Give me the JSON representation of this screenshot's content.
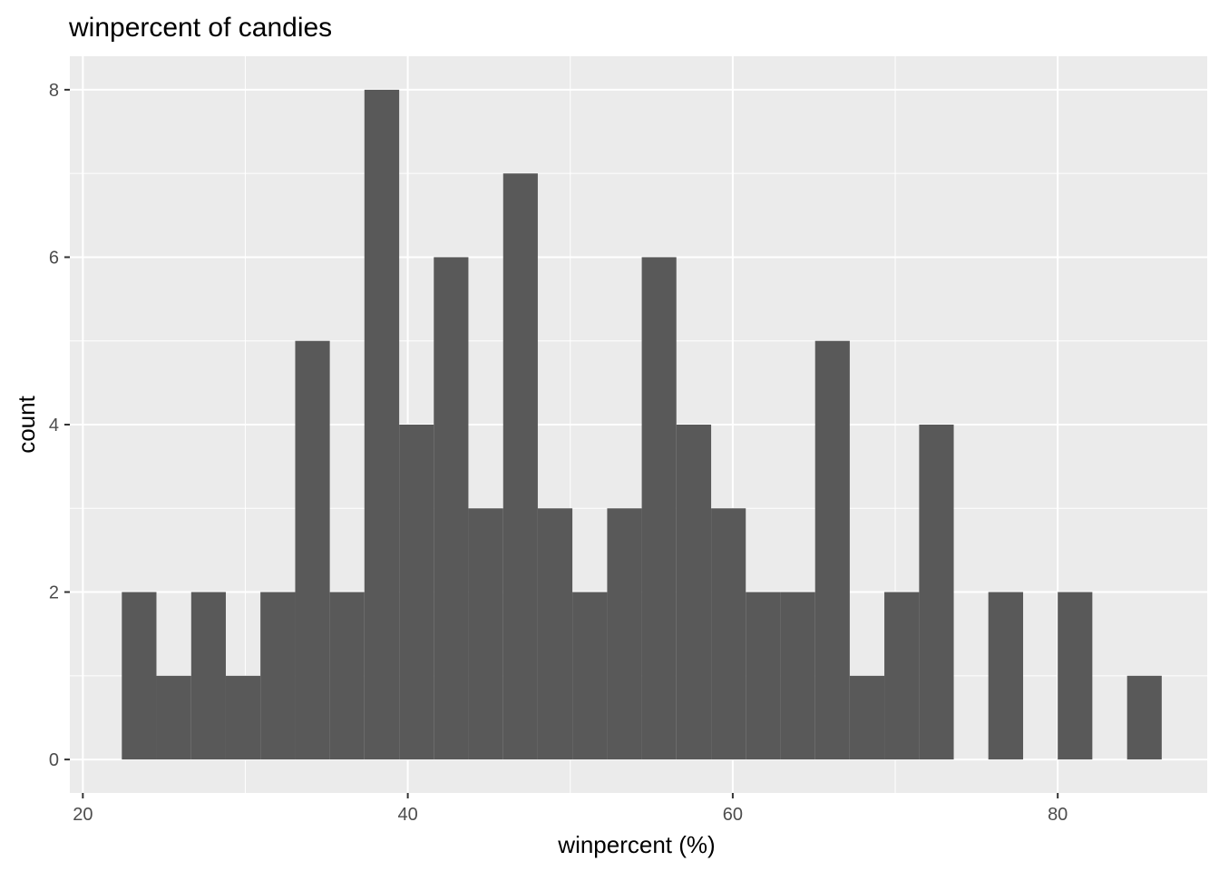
{
  "chart_data": {
    "type": "bar",
    "title": "winpercent of candies",
    "xlabel": "winpercent (%)",
    "ylabel": "count",
    "xlim": [
      19.2,
      89.2
    ],
    "ylim": [
      -0.4,
      8.4
    ],
    "x_ticks": [
      20,
      40,
      60,
      80
    ],
    "y_ticks": [
      0,
      2,
      4,
      6,
      8
    ],
    "bins": [
      {
        "x0": 22.4,
        "x1": 24.53,
        "count": 2
      },
      {
        "x0": 24.53,
        "x1": 26.67,
        "count": 1
      },
      {
        "x0": 26.67,
        "x1": 28.8,
        "count": 2
      },
      {
        "x0": 28.8,
        "x1": 30.93,
        "count": 1
      },
      {
        "x0": 30.93,
        "x1": 33.07,
        "count": 2
      },
      {
        "x0": 33.07,
        "x1": 35.2,
        "count": 5
      },
      {
        "x0": 35.2,
        "x1": 37.33,
        "count": 2
      },
      {
        "x0": 37.33,
        "x1": 39.47,
        "count": 8
      },
      {
        "x0": 39.47,
        "x1": 41.6,
        "count": 4
      },
      {
        "x0": 41.6,
        "x1": 43.73,
        "count": 6
      },
      {
        "x0": 43.73,
        "x1": 45.87,
        "count": 3
      },
      {
        "x0": 45.87,
        "x1": 48.0,
        "count": 7
      },
      {
        "x0": 48.0,
        "x1": 50.13,
        "count": 3
      },
      {
        "x0": 50.13,
        "x1": 52.27,
        "count": 2
      },
      {
        "x0": 52.27,
        "x1": 54.4,
        "count": 3
      },
      {
        "x0": 54.4,
        "x1": 56.53,
        "count": 6
      },
      {
        "x0": 56.53,
        "x1": 58.67,
        "count": 4
      },
      {
        "x0": 58.67,
        "x1": 60.8,
        "count": 3
      },
      {
        "x0": 60.8,
        "x1": 62.93,
        "count": 2
      },
      {
        "x0": 62.93,
        "x1": 65.07,
        "count": 2
      },
      {
        "x0": 65.07,
        "x1": 67.2,
        "count": 5
      },
      {
        "x0": 67.2,
        "x1": 69.33,
        "count": 1
      },
      {
        "x0": 69.33,
        "x1": 71.47,
        "count": 2
      },
      {
        "x0": 71.47,
        "x1": 73.6,
        "count": 4
      },
      {
        "x0": 73.6,
        "x1": 75.73,
        "count": 0
      },
      {
        "x0": 75.73,
        "x1": 77.87,
        "count": 2
      },
      {
        "x0": 77.87,
        "x1": 80.0,
        "count": 0
      },
      {
        "x0": 80.0,
        "x1": 82.13,
        "count": 2
      },
      {
        "x0": 82.13,
        "x1": 84.27,
        "count": 0
      },
      {
        "x0": 84.27,
        "x1": 86.4,
        "count": 1
      }
    ],
    "grid": true,
    "legend": "none",
    "colors": {
      "panel": "#ebebeb",
      "bar": "#595959",
      "grid": "#ffffff",
      "tick_text": "#4d4d4d"
    }
  }
}
